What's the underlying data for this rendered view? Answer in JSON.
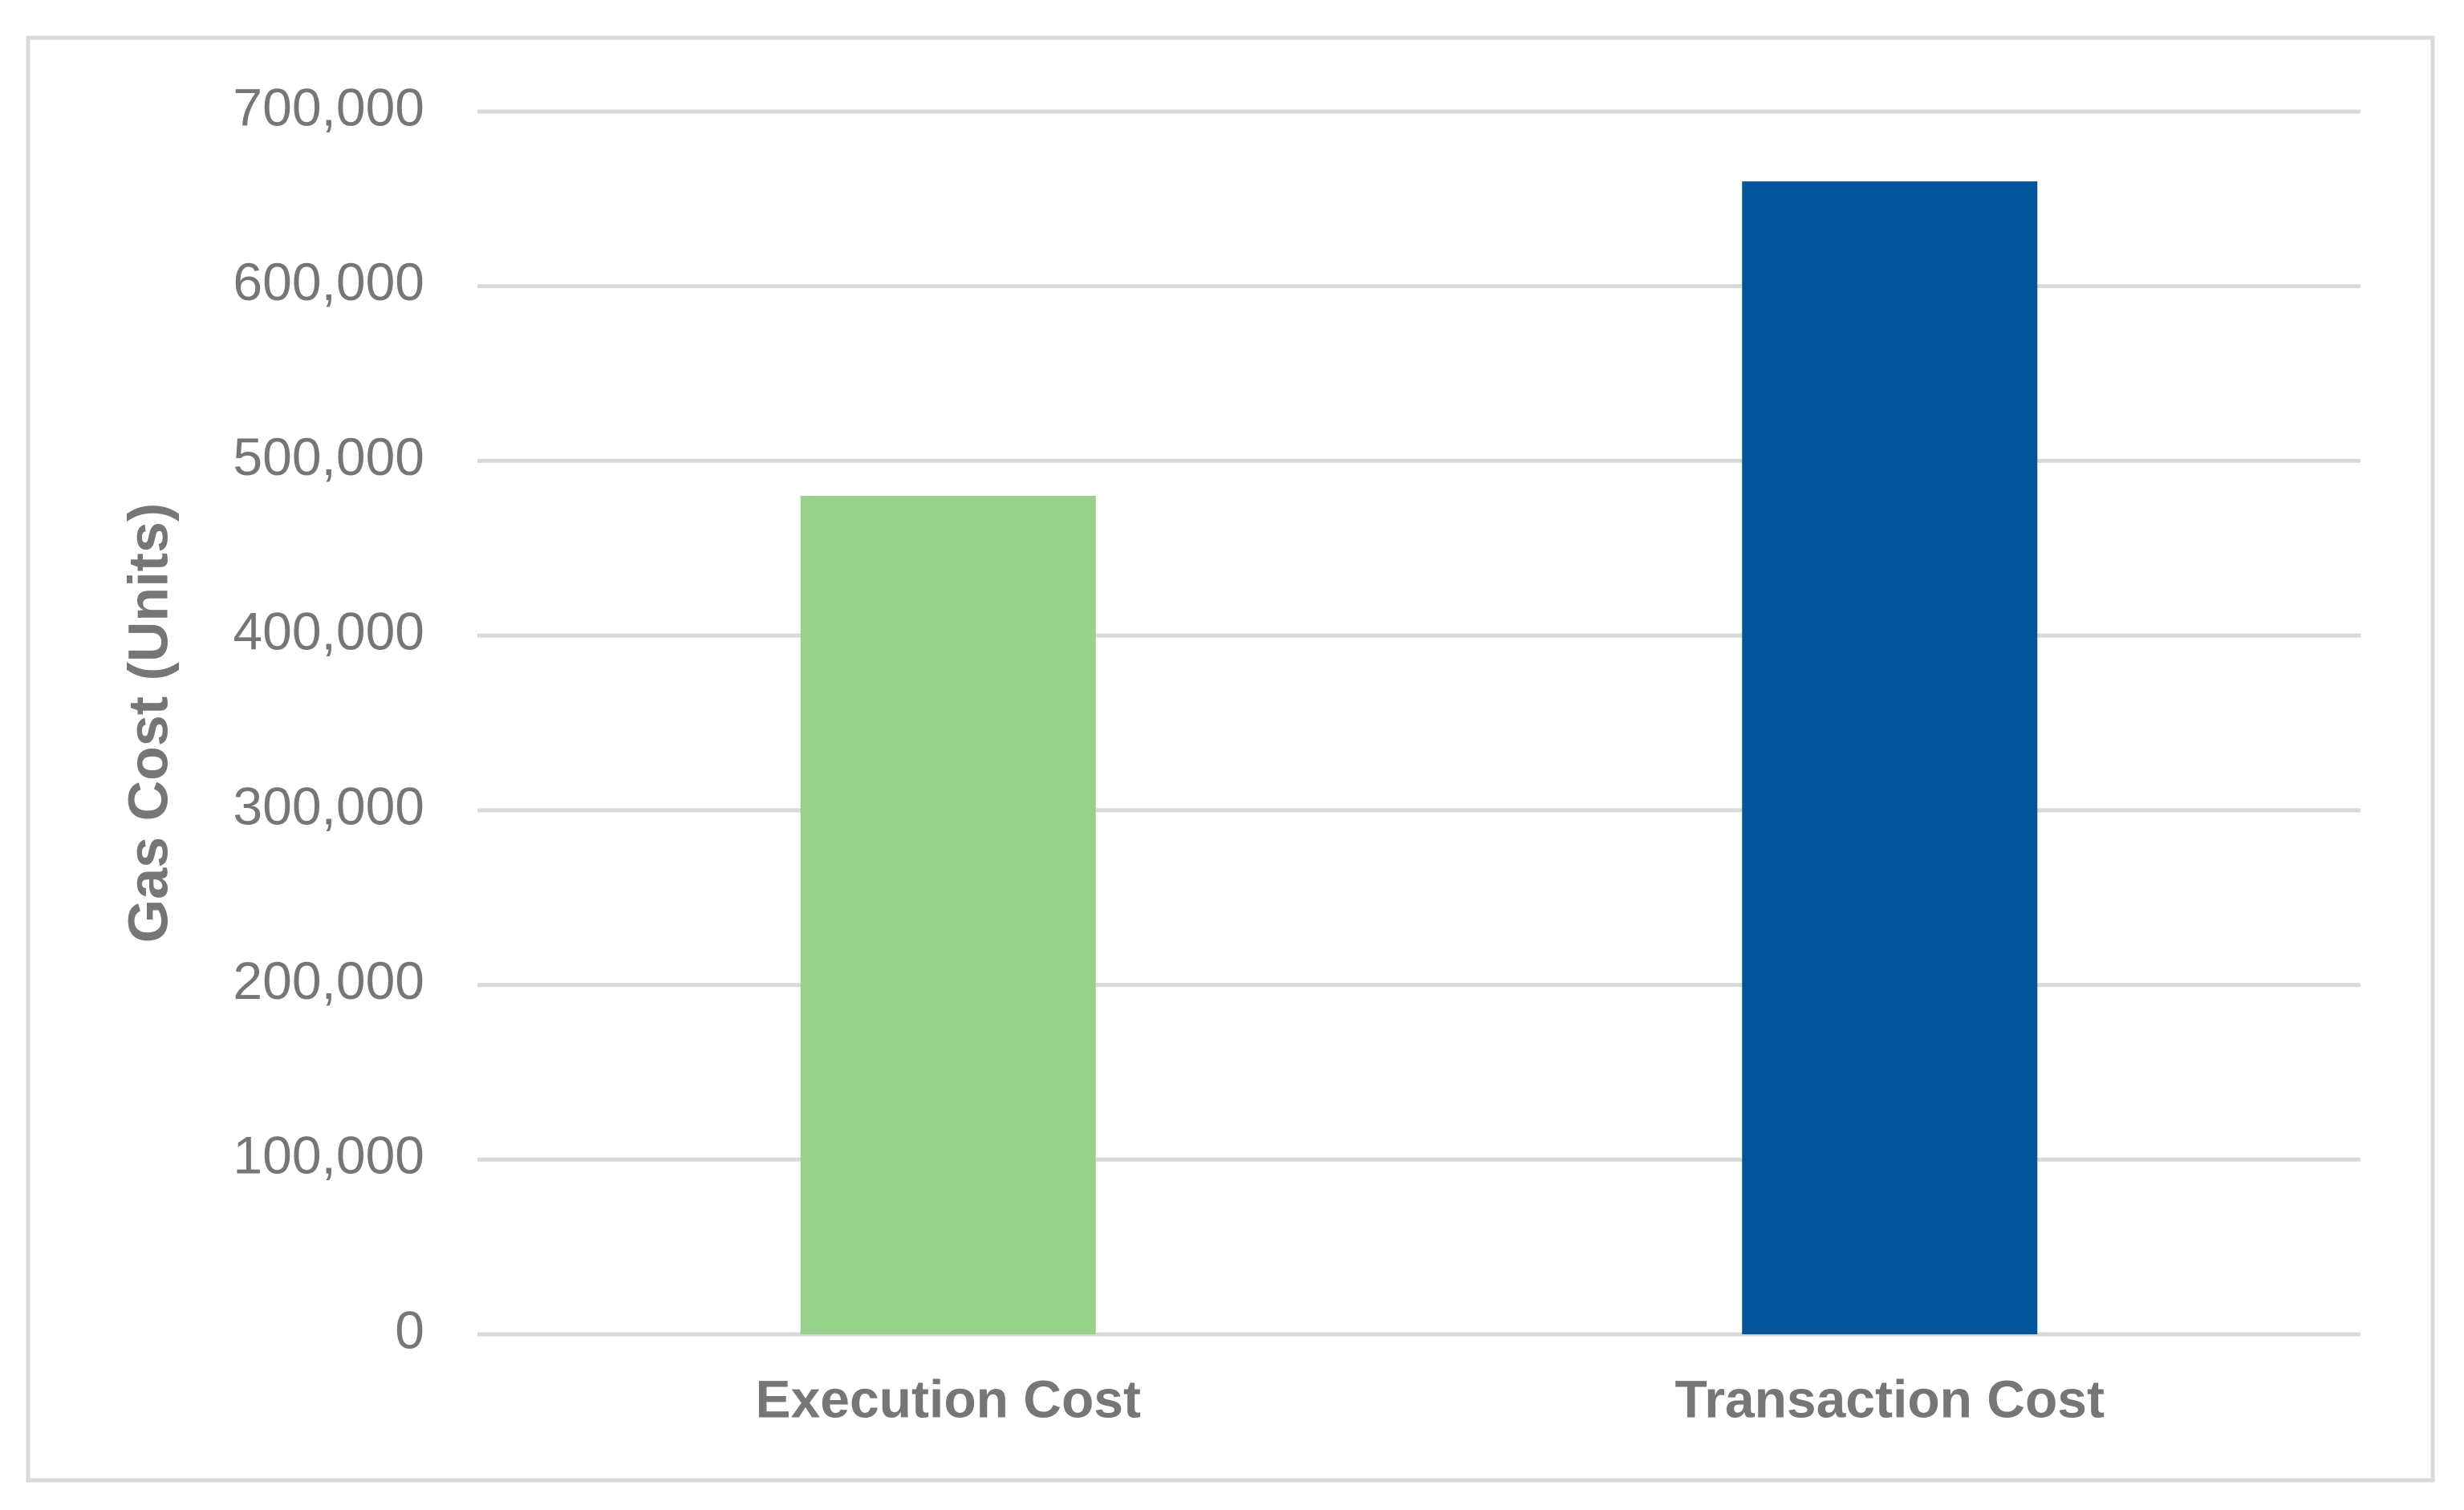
{
  "chart_data": {
    "type": "bar",
    "y_label": "Gas Cost (Units)",
    "categories": [
      "Execution Cost",
      "Transaction Cost"
    ],
    "values": [
      480000,
      660000
    ],
    "colors": [
      "#97d18a",
      "#00559b"
    ],
    "ylim": [
      0,
      700000
    ],
    "yticks": [
      0,
      {
        "value": 100000,
        "label": "100,000"
      },
      {
        "value": 200000,
        "label": "200,000"
      },
      {
        "value": 300000,
        "label": "300,000"
      },
      {
        "value": 400000,
        "label": "400,000"
      },
      {
        "value": 500000,
        "label": "500,000"
      },
      {
        "value": 600000,
        "label": "600,000"
      },
      {
        "value": 700000,
        "label": "700,000"
      }
    ],
    "grid": true
  }
}
